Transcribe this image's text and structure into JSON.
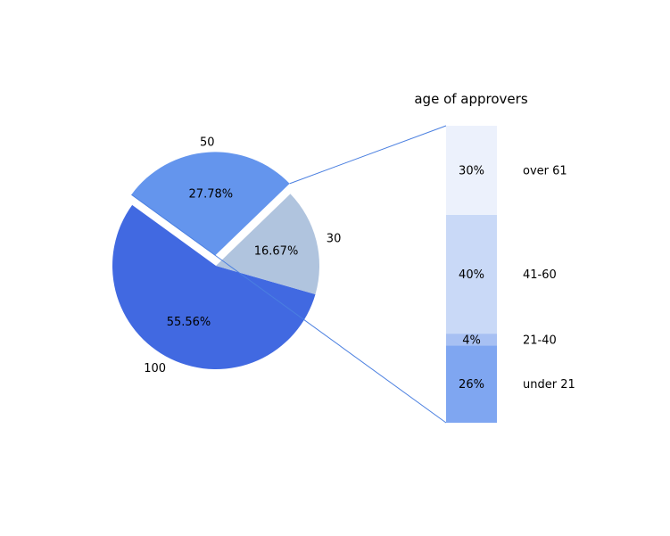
{
  "chart_data": [
    {
      "type": "pie",
      "slices": [
        {
          "value": 100,
          "value_label": "100",
          "pct_label": "55.56%",
          "color": "#4169e1",
          "exploded": false
        },
        {
          "value": 30,
          "value_label": "30",
          "pct_label": "16.67%",
          "color": "#b0c4de",
          "exploded": false
        },
        {
          "value": 50,
          "value_label": "50",
          "pct_label": "27.78%",
          "color": "#6495ed",
          "exploded": true
        }
      ]
    },
    {
      "type": "bar",
      "stacked": true,
      "title": "age of approvers",
      "categories": [
        "under 21",
        "21-40",
        "41-60",
        "over 61"
      ],
      "values": [
        26,
        4,
        40,
        30
      ],
      "pct_labels": [
        "26%",
        "4%",
        "40%",
        "30%"
      ],
      "colors": [
        "#7fa6f1",
        "#a7c0f3",
        "#c9d9f7",
        "#ecf1fc"
      ]
    }
  ]
}
